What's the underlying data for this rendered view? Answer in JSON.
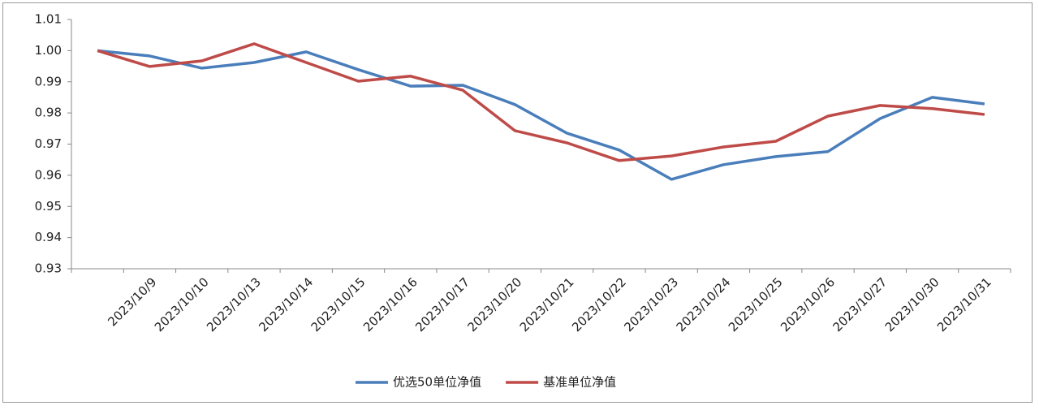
{
  "chart_data": {
    "type": "line",
    "categories": [
      null,
      "2023/10/9",
      "2023/10/10",
      "2023/10/13",
      "2023/10/14",
      "2023/10/15",
      "2023/10/16",
      "2023/10/17",
      "2023/10/20",
      "2023/10/21",
      "2023/10/22",
      "2023/10/23",
      "2023/10/24",
      "2023/10/25",
      "2023/10/26",
      "2023/10/27",
      "2023/10/30",
      "2023/10/31"
    ],
    "series": [
      {
        "name": "优选50单位净值",
        "color": "#4a7ebb",
        "values": [
          1.0,
          0.9983,
          0.9944,
          0.9962,
          0.9996,
          0.9939,
          0.9886,
          0.9889,
          0.9827,
          0.9735,
          0.9681,
          0.9587,
          0.9634,
          0.966,
          0.9676,
          0.9782,
          0.985,
          0.9829
        ]
      },
      {
        "name": "基准单位净值",
        "color": "#be4b48",
        "values": [
          1.0,
          0.9949,
          0.9967,
          1.0022,
          0.9962,
          0.9902,
          0.9918,
          0.9873,
          0.9743,
          0.9704,
          0.9647,
          0.9662,
          0.9691,
          0.9709,
          0.979,
          0.9824,
          0.9814,
          0.9795
        ]
      }
    ],
    "ylim": [
      0.93,
      1.01
    ],
    "yticks": [
      0.93,
      0.94,
      0.95,
      0.96,
      0.97,
      0.98,
      0.99,
      {
        "value": 1,
        "label": "1.00"
      },
      1.01
    ],
    "grid": false,
    "legend": "bottom"
  }
}
